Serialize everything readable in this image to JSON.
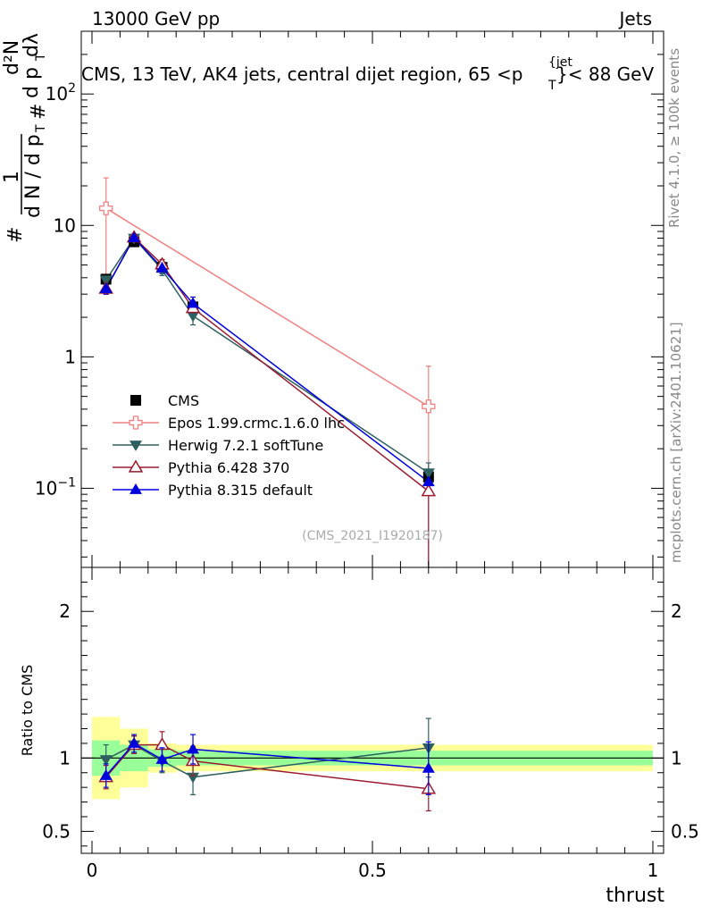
{
  "header": {
    "left": "13000 GeV pp",
    "right": "Jets",
    "subtitle_prefix": "CMS, 13 TeV, AK4 jets, central dijet region, 65 <p",
    "subtitle_sup": "{jet",
    "subtitle_sub": "T",
    "subtitle_suffix": "}< 88 GeV",
    "rivet_label": "Rivet 4.1.0, ≥ 100k events",
    "mcplots_label": "mcplots.cern.ch [arXiv:2401.10621]",
    "analysis_id": "(CMS_2021_I1920187)"
  },
  "ylabel_top": {
    "hash1": "#",
    "one": "1",
    "dN": "d N / d p",
    "dN_sub": "T",
    "hash2": "#",
    "d2N": "d²N",
    "dpt": "d p",
    "dpt_sub": "T",
    "dl": "dλ"
  },
  "ylabel_bottom": "Ratio to CMS",
  "xlabel": "thrust",
  "chart_data": {
    "type": "line",
    "x_range": [
      0,
      1
    ],
    "top_panel": {
      "yscale": "log",
      "ylim": [
        0.025,
        300
      ],
      "yticks": [
        {
          "v": 0.1,
          "b": "10",
          "e": "−1"
        },
        {
          "v": 1,
          "b": "1",
          "e": ""
        },
        {
          "v": 10,
          "b": "10",
          "e": ""
        },
        {
          "v": 100,
          "b": "10",
          "e": "2"
        }
      ]
    },
    "ratio_panel": {
      "ylim": [
        0.35,
        2.3
      ],
      "yticks": [
        0.5,
        1,
        2
      ],
      "tick_labels": [
        "0.5",
        "1",
        "2"
      ]
    },
    "xticks": [
      0,
      0.5,
      1
    ],
    "xtick_labels": [
      "0",
      "0.5",
      "1"
    ],
    "bins": [
      [
        0.0,
        0.05
      ],
      [
        0.05,
        0.1
      ],
      [
        0.1,
        0.15
      ],
      [
        0.15,
        0.2
      ],
      [
        0.2,
        1.0
      ]
    ],
    "x": [
      0.025,
      0.075,
      0.125,
      0.18,
      0.6
    ],
    "data": {
      "name": "CMS",
      "values": [
        3.9,
        7.5,
        4.8,
        2.4,
        0.122
      ],
      "band_stat": [
        [
          0.88,
          1.12
        ],
        [
          0.91,
          1.09
        ],
        [
          0.94,
          1.06
        ],
        [
          0.95,
          1.05
        ],
        [
          0.95,
          1.05
        ]
      ],
      "band_total": [
        [
          0.72,
          1.28
        ],
        [
          0.8,
          1.2
        ],
        [
          0.9,
          1.1
        ],
        [
          0.91,
          1.09
        ],
        [
          0.91,
          1.09
        ]
      ]
    },
    "series": [
      {
        "name": "Epos 1.99.crmc.1.6.0 lhc",
        "color": "#f08080",
        "marker": "plus-open",
        "x": [
          0.025,
          0.6
        ],
        "values": [
          13.5,
          0.42
        ],
        "err_lo": [
          10.5,
          0.395
        ],
        "err_hi": [
          9.5,
          0.43
        ],
        "ratio": null
      },
      {
        "name": "Herwig 7.2.1 softTune",
        "color": "#2f6060",
        "marker": "triangle-down",
        "values": [
          3.85,
          8.0,
          4.6,
          2.05,
          0.131
        ],
        "err_lo": [
          0.35,
          0.55,
          0.45,
          0.3,
          0.025
        ],
        "err_hi": [
          0.35,
          0.55,
          0.45,
          0.3,
          0.025
        ],
        "ratio": [
          0.99,
          1.09,
          0.98,
          0.87,
          1.07
        ],
        "ratio_err": [
          0.1,
          0.06,
          0.08,
          0.12,
          0.2
        ]
      },
      {
        "name": "Pythia 6.428 370",
        "color": "#9b1c31",
        "marker": "triangle-open",
        "values": [
          3.3,
          8.1,
          5.05,
          2.35,
          0.095
        ],
        "err_lo": [
          0.3,
          0.5,
          0.45,
          0.3,
          0.07
        ],
        "err_hi": [
          0.3,
          0.5,
          0.45,
          0.3,
          0.02
        ],
        "ratio": [
          0.87,
          1.09,
          1.09,
          0.98,
          0.79
        ],
        "ratio_err": [
          0.08,
          0.06,
          0.09,
          0.1,
          0.15
        ]
      },
      {
        "name": "Pythia 8.315 default",
        "color": "#0000dd",
        "marker": "triangle-up",
        "values": [
          3.3,
          8.05,
          4.75,
          2.55,
          0.112
        ],
        "err_lo": [
          0.3,
          0.5,
          0.45,
          0.3,
          0.02
        ],
        "err_hi": [
          0.3,
          0.5,
          0.45,
          0.3,
          0.02
        ],
        "ratio": [
          0.88,
          1.1,
          0.99,
          1.06,
          0.93
        ],
        "ratio_err": [
          0.08,
          0.06,
          0.08,
          0.1,
          0.18
        ]
      }
    ]
  }
}
